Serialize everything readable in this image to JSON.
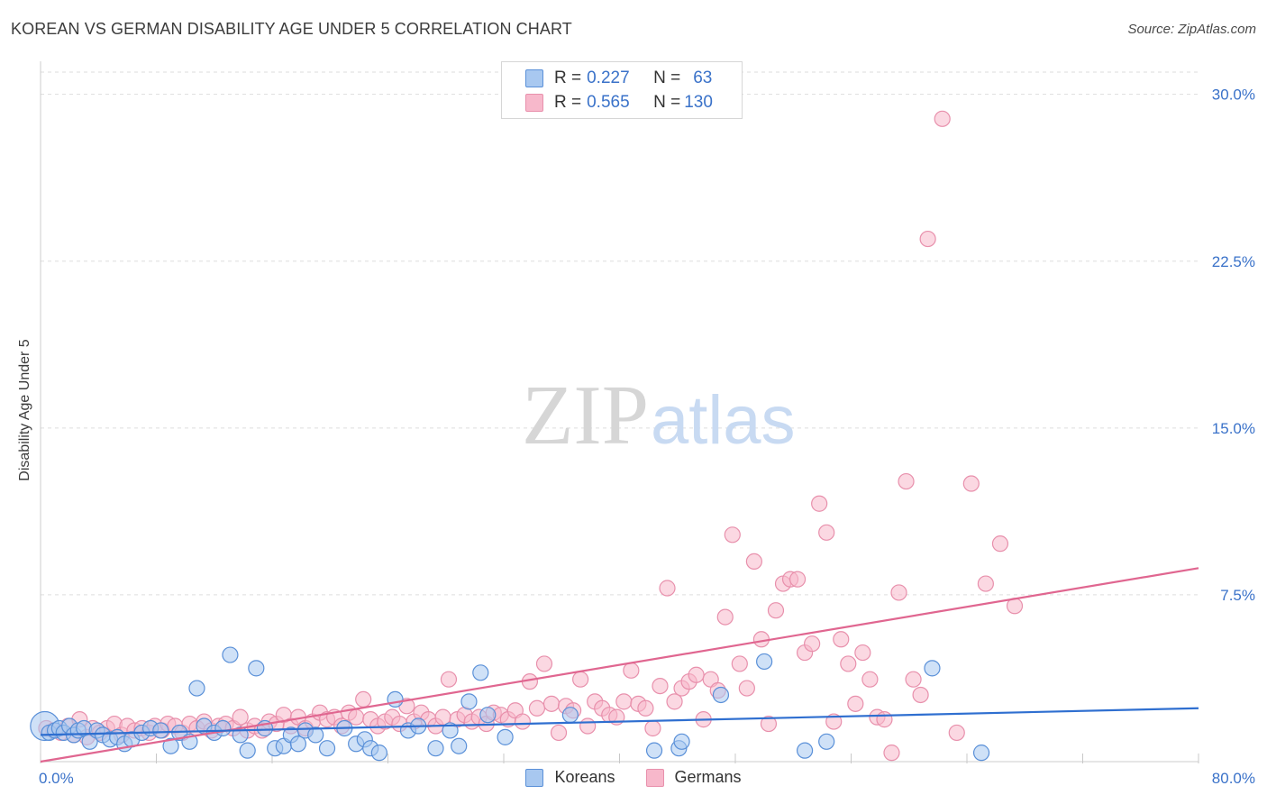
{
  "header": {
    "title": "KOREAN VS GERMAN DISABILITY AGE UNDER 5 CORRELATION CHART",
    "source": "Source: ZipAtlas.com"
  },
  "watermark": {
    "zip": "ZIP",
    "atlas": "atlas"
  },
  "colors": {
    "koreans_fill": "#a8c8f0",
    "koreans_stroke": "#5a90d8",
    "koreans_line": "#2f6fd0",
    "germans_fill": "#f7b8cb",
    "germans_stroke": "#e890ac",
    "germans_line": "#e06690",
    "tick_text": "#3a72c9",
    "grid": "#dddddd"
  },
  "legend": {
    "rows": [
      {
        "r_label": "R = ",
        "r_value": "0.227",
        "n_label": "N = ",
        "n_value": "63"
      },
      {
        "r_label": "R = ",
        "r_value": "0.565",
        "n_label": "N = ",
        "n_value": "130"
      }
    ]
  },
  "bottom_legend": {
    "koreans": "Koreans",
    "germans": "Germans"
  },
  "chart_data": {
    "type": "scatter",
    "title": "KOREAN VS GERMAN DISABILITY AGE UNDER 5 CORRELATION CHART",
    "ylabel": "Disability Age Under 5",
    "xlabel": "",
    "xlim": [
      0,
      80
    ],
    "ylim": [
      0,
      31
    ],
    "y_ticks": [
      7.5,
      15.0,
      22.5,
      30.0
    ],
    "y_tick_labels": [
      "7.5%",
      "15.0%",
      "22.5%",
      "30.0%"
    ],
    "x_tick_labels": [
      "0.0%",
      "80.0%"
    ],
    "grid": "horizontal dashed",
    "legend_position": "top-center",
    "series": [
      {
        "name": "Koreans",
        "r": 0.227,
        "n": 63,
        "trend": {
          "x": [
            0,
            80
          ],
          "y": [
            1.2,
            2.4
          ]
        },
        "points": [
          [
            0.3,
            1.6
          ],
          [
            0.6,
            1.3
          ],
          [
            1.0,
            1.4
          ],
          [
            1.3,
            1.5
          ],
          [
            1.6,
            1.3
          ],
          [
            2.0,
            1.6
          ],
          [
            2.3,
            1.2
          ],
          [
            2.6,
            1.4
          ],
          [
            3.0,
            1.5
          ],
          [
            3.4,
            0.9
          ],
          [
            3.9,
            1.4
          ],
          [
            4.3,
            1.2
          ],
          [
            4.8,
            1.0
          ],
          [
            5.3,
            1.1
          ],
          [
            5.8,
            0.8
          ],
          [
            6.3,
            1.0
          ],
          [
            7.0,
            1.3
          ],
          [
            7.6,
            1.5
          ],
          [
            8.3,
            1.4
          ],
          [
            9.0,
            0.7
          ],
          [
            9.6,
            1.3
          ],
          [
            10.3,
            0.9
          ],
          [
            10.8,
            3.3
          ],
          [
            11.3,
            1.6
          ],
          [
            12.0,
            1.3
          ],
          [
            12.6,
            1.5
          ],
          [
            13.1,
            4.8
          ],
          [
            13.8,
            1.2
          ],
          [
            14.3,
            0.5
          ],
          [
            14.9,
            4.2
          ],
          [
            15.5,
            1.5
          ],
          [
            16.2,
            0.6
          ],
          [
            16.8,
            0.7
          ],
          [
            17.3,
            1.2
          ],
          [
            17.8,
            0.8
          ],
          [
            18.3,
            1.4
          ],
          [
            19.0,
            1.2
          ],
          [
            19.8,
            0.6
          ],
          [
            21.0,
            1.5
          ],
          [
            21.8,
            0.8
          ],
          [
            22.4,
            1.0
          ],
          [
            22.8,
            0.6
          ],
          [
            23.4,
            0.4
          ],
          [
            24.5,
            2.8
          ],
          [
            25.4,
            1.4
          ],
          [
            26.1,
            1.6
          ],
          [
            27.3,
            0.6
          ],
          [
            28.3,
            1.4
          ],
          [
            28.9,
            0.7
          ],
          [
            29.6,
            2.7
          ],
          [
            30.4,
            4.0
          ],
          [
            30.9,
            2.1
          ],
          [
            32.1,
            1.1
          ],
          [
            36.6,
            2.1
          ],
          [
            42.4,
            0.5
          ],
          [
            44.1,
            0.6
          ],
          [
            44.3,
            0.9
          ],
          [
            47.0,
            3.0
          ],
          [
            50.0,
            4.5
          ],
          [
            52.8,
            0.5
          ],
          [
            54.3,
            0.9
          ],
          [
            61.6,
            4.2
          ],
          [
            65.0,
            0.4
          ]
        ]
      },
      {
        "name": "Germans",
        "r": 0.565,
        "n": 130,
        "trend": {
          "x": [
            0,
            80
          ],
          "y": [
            0.0,
            8.7
          ]
        },
        "points": [
          [
            0.4,
            1.5
          ],
          [
            0.9,
            1.4
          ],
          [
            1.4,
            1.3
          ],
          [
            1.9,
            1.6
          ],
          [
            2.3,
            1.2
          ],
          [
            2.7,
            1.9
          ],
          [
            3.2,
            1.1
          ],
          [
            3.6,
            1.5
          ],
          [
            4.1,
            1.3
          ],
          [
            4.6,
            1.5
          ],
          [
            5.1,
            1.7
          ],
          [
            5.6,
            1.2
          ],
          [
            6.0,
            1.6
          ],
          [
            6.5,
            1.4
          ],
          [
            7.0,
            1.5
          ],
          [
            7.5,
            1.3
          ],
          [
            7.9,
            1.6
          ],
          [
            8.4,
            1.4
          ],
          [
            8.8,
            1.7
          ],
          [
            9.3,
            1.6
          ],
          [
            9.8,
            1.3
          ],
          [
            10.3,
            1.7
          ],
          [
            10.8,
            1.5
          ],
          [
            11.3,
            1.8
          ],
          [
            11.8,
            1.4
          ],
          [
            12.3,
            1.6
          ],
          [
            12.8,
            1.7
          ],
          [
            13.3,
            1.5
          ],
          [
            13.8,
            2.0
          ],
          [
            14.3,
            1.4
          ],
          [
            14.8,
            1.6
          ],
          [
            15.3,
            1.4
          ],
          [
            15.8,
            1.8
          ],
          [
            16.3,
            1.7
          ],
          [
            16.8,
            2.1
          ],
          [
            17.3,
            1.6
          ],
          [
            17.8,
            2.0
          ],
          [
            18.3,
            1.5
          ],
          [
            18.8,
            1.8
          ],
          [
            19.3,
            2.2
          ],
          [
            19.8,
            1.9
          ],
          [
            20.3,
            2.0
          ],
          [
            20.8,
            1.6
          ],
          [
            21.3,
            2.2
          ],
          [
            21.8,
            2.0
          ],
          [
            22.3,
            2.8
          ],
          [
            22.8,
            1.9
          ],
          [
            23.3,
            1.6
          ],
          [
            23.8,
            1.8
          ],
          [
            24.3,
            2.0
          ],
          [
            24.8,
            1.7
          ],
          [
            25.3,
            2.5
          ],
          [
            25.8,
            1.8
          ],
          [
            26.3,
            2.2
          ],
          [
            26.8,
            1.9
          ],
          [
            27.3,
            1.6
          ],
          [
            27.8,
            2.0
          ],
          [
            28.2,
            3.7
          ],
          [
            28.8,
            1.9
          ],
          [
            29.3,
            2.1
          ],
          [
            29.8,
            1.8
          ],
          [
            30.3,
            2.0
          ],
          [
            30.8,
            1.7
          ],
          [
            31.3,
            2.2
          ],
          [
            31.8,
            2.1
          ],
          [
            32.3,
            1.9
          ],
          [
            32.8,
            2.3
          ],
          [
            33.3,
            1.8
          ],
          [
            33.8,
            3.6
          ],
          [
            34.3,
            2.4
          ],
          [
            34.8,
            4.4
          ],
          [
            35.3,
            2.6
          ],
          [
            35.8,
            1.3
          ],
          [
            36.3,
            2.5
          ],
          [
            36.8,
            2.3
          ],
          [
            37.3,
            3.7
          ],
          [
            37.8,
            1.6
          ],
          [
            38.3,
            2.7
          ],
          [
            38.8,
            2.4
          ],
          [
            39.3,
            2.1
          ],
          [
            39.8,
            2.0
          ],
          [
            40.3,
            2.7
          ],
          [
            40.8,
            4.1
          ],
          [
            41.3,
            2.6
          ],
          [
            41.8,
            2.4
          ],
          [
            42.3,
            1.5
          ],
          [
            42.8,
            3.4
          ],
          [
            43.3,
            7.8
          ],
          [
            43.8,
            2.7
          ],
          [
            44.3,
            3.3
          ],
          [
            44.8,
            3.6
          ],
          [
            45.3,
            3.9
          ],
          [
            45.8,
            1.9
          ],
          [
            46.3,
            3.7
          ],
          [
            46.8,
            3.2
          ],
          [
            47.3,
            6.5
          ],
          [
            47.8,
            10.2
          ],
          [
            48.3,
            4.4
          ],
          [
            48.8,
            3.3
          ],
          [
            49.3,
            9.0
          ],
          [
            49.8,
            5.5
          ],
          [
            50.3,
            1.7
          ],
          [
            50.8,
            6.8
          ],
          [
            51.3,
            8.0
          ],
          [
            51.8,
            8.2
          ],
          [
            52.3,
            8.2
          ],
          [
            52.8,
            4.9
          ],
          [
            53.3,
            5.3
          ],
          [
            53.8,
            11.6
          ],
          [
            54.3,
            10.3
          ],
          [
            54.8,
            1.8
          ],
          [
            55.3,
            5.5
          ],
          [
            55.8,
            4.4
          ],
          [
            56.3,
            2.6
          ],
          [
            56.8,
            4.9
          ],
          [
            57.3,
            3.7
          ],
          [
            57.8,
            2.0
          ],
          [
            58.3,
            1.9
          ],
          [
            58.8,
            0.4
          ],
          [
            59.3,
            7.6
          ],
          [
            59.8,
            12.6
          ],
          [
            60.3,
            3.7
          ],
          [
            60.8,
            3.0
          ],
          [
            61.3,
            23.5
          ],
          [
            62.3,
            28.9
          ],
          [
            63.3,
            1.3
          ],
          [
            64.3,
            12.5
          ],
          [
            65.3,
            8.0
          ],
          [
            66.3,
            9.8
          ],
          [
            67.3,
            7.0
          ]
        ]
      }
    ]
  }
}
